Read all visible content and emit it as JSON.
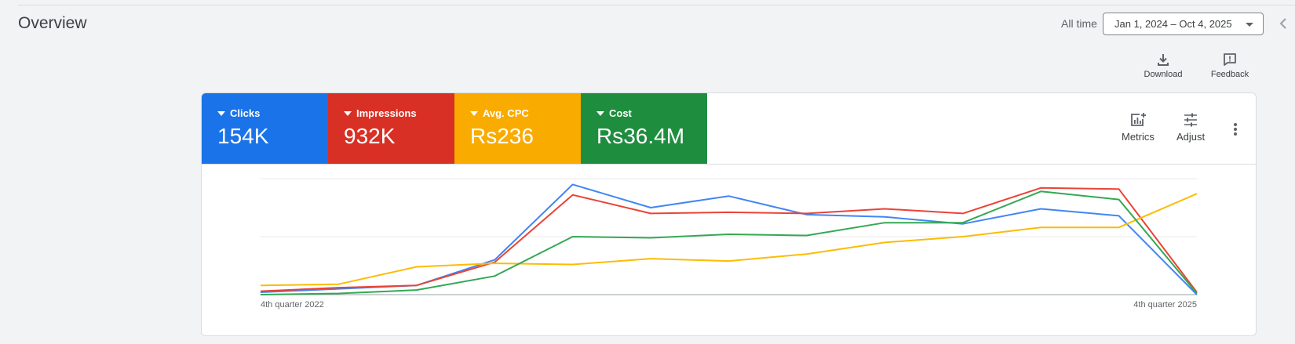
{
  "header": {
    "title": "Overview",
    "range_label": "All time",
    "date_range": "Jan 1, 2024 – Oct 4, 2025",
    "collapse_icon": "chevron-left-icon"
  },
  "toolbar": {
    "download_label": "Download",
    "download_icon": "download-icon",
    "feedback_label": "Feedback",
    "feedback_icon": "feedback-icon"
  },
  "scorecards": [
    {
      "label": "Clicks",
      "value": "154K",
      "color": "#1a73e8"
    },
    {
      "label": "Impressions",
      "value": "932K",
      "color": "#d93025"
    },
    {
      "label": "Avg. CPC",
      "value": "Rs236",
      "color": "#f9ab00"
    },
    {
      "label": "Cost",
      "value": "Rs36.4M",
      "color": "#1e8e3e"
    }
  ],
  "card_tools": {
    "metrics_label": "Metrics",
    "metrics_icon": "add-chart-icon",
    "adjust_label": "Adjust",
    "adjust_icon": "tune-icon",
    "more_icon": "more-vert-icon"
  },
  "chart_data": {
    "type": "line",
    "x": [
      "4th quarter 2022",
      "",
      "",
      "",
      "",
      "",
      "",
      "",
      "",
      "",
      "",
      "",
      "4th quarter 2025"
    ],
    "x_tick_labels": [
      "4th quarter 2022",
      "4th quarter 2025"
    ],
    "ylim": [
      0,
      100
    ],
    "grid": true,
    "normalized": true,
    "series": [
      {
        "name": "Clicks",
        "color": "#4285f4",
        "values": [
          2,
          5,
          8,
          30,
          95,
          75,
          85,
          69,
          67,
          61,
          74,
          68,
          0
        ]
      },
      {
        "name": "Impressions",
        "color": "#ea4335",
        "values": [
          3,
          6,
          8,
          28,
          86,
          70,
          71,
          70,
          74,
          70,
          92,
          91,
          2
        ]
      },
      {
        "name": "Avg. CPC",
        "color": "#fbbc04",
        "values": [
          8,
          9,
          24,
          27,
          26,
          31,
          29,
          35,
          45,
          50,
          58,
          58,
          87
        ]
      },
      {
        "name": "Cost",
        "color": "#34a853",
        "values": [
          0,
          1,
          4,
          16,
          50,
          49,
          52,
          51,
          62,
          62,
          89,
          82,
          1
        ]
      }
    ]
  }
}
